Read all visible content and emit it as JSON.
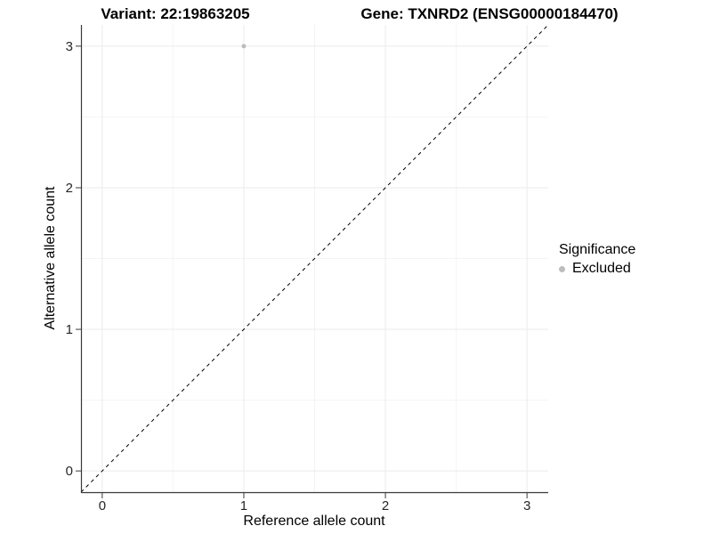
{
  "header": {
    "variant_title": "Variant: 22:19863205",
    "gene_title": "Gene: TXNRD2 (ENSG00000184470)"
  },
  "legend": {
    "title": "Significance",
    "items": [
      {
        "label": "Excluded",
        "color": "#bdbdbd"
      }
    ]
  },
  "chart_data": {
    "type": "scatter",
    "title_left": "Variant: 22:19863205",
    "title_right": "Gene: TXNRD2 (ENSG00000184470)",
    "xlabel": "Reference allele count",
    "ylabel": "Alternative allele count",
    "xlim": [
      -0.15,
      3.15
    ],
    "ylim": [
      -0.15,
      3.15
    ],
    "x_ticks": [
      0,
      1,
      2,
      3
    ],
    "y_ticks": [
      0,
      1,
      2,
      3
    ],
    "x_minor_ticks": [
      0.5,
      1.5,
      2.5
    ],
    "y_minor_ticks": [
      0.5,
      1.5,
      2.5
    ],
    "grid": "major+minor",
    "legend_position": "right",
    "series": [
      {
        "name": "Excluded",
        "color": "#bdbdbd",
        "points": [
          {
            "x": 1,
            "y": 3
          }
        ]
      }
    ],
    "reference_line": {
      "slope": 1,
      "intercept": 0,
      "style": "dashed",
      "color": "#000000"
    }
  },
  "style": {
    "major_grid_color": "#ebebeb",
    "minor_grid_color": "#f4f4f4",
    "axis_line_color": "#3a3a3a",
    "tick_label_color": "#262626",
    "background": "#ffffff"
  }
}
